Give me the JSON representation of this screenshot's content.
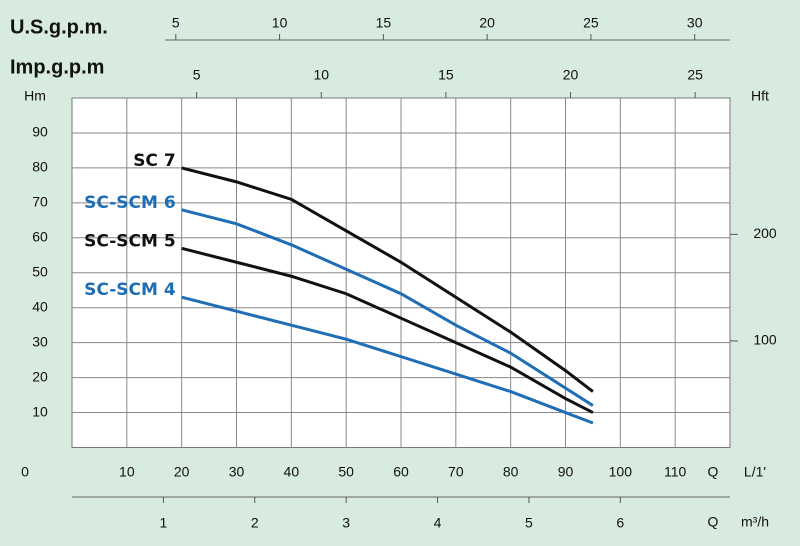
{
  "chart_data": {
    "type": "line",
    "x": [
      20,
      30,
      40,
      50,
      60,
      70,
      80,
      90,
      95
    ],
    "xlim": [
      0,
      120
    ],
    "xticks": [
      0,
      10,
      20,
      30,
      40,
      50,
      60,
      70,
      80,
      90,
      100,
      110
    ],
    "xlabel": {
      "symbol": "Q",
      "unit": "L/1'"
    },
    "ylabel": "Hm",
    "ylim": [
      0,
      100
    ],
    "yticks": [
      10,
      20,
      30,
      40,
      50,
      60,
      70,
      80,
      90
    ],
    "grid": true,
    "y2label": "Hft",
    "y2lim": [
      0,
      328
    ],
    "y2ticks": [
      100,
      200
    ],
    "secondary_x_axes": [
      {
        "label": "U.S.g.p.m.",
        "lim": [
          0,
          31.7
        ],
        "ticks": [
          5,
          10,
          15,
          20,
          25,
          30
        ]
      },
      {
        "label": "Imp.g.p.m",
        "lim": [
          0,
          26.4
        ],
        "ticks": [
          5,
          10,
          15,
          20,
          25
        ]
      },
      {
        "symbol": "Q",
        "label": "m³/h",
        "lim": [
          0,
          7.2
        ],
        "ticks": [
          1,
          2,
          3,
          4,
          5,
          6
        ]
      }
    ],
    "series": [
      {
        "name": "SC 7",
        "color": "#111111",
        "values": [
          80,
          76,
          71,
          62,
          53,
          43,
          33,
          22,
          16
        ]
      },
      {
        "name": "SC-SCM 6",
        "color": "#1f6db5",
        "values": [
          68,
          64,
          58,
          51,
          44,
          35,
          27,
          17,
          12
        ]
      },
      {
        "name": "SC-SCM 5",
        "color": "#111111",
        "values": [
          57,
          53,
          49,
          44,
          37,
          30,
          23,
          14,
          10
        ]
      },
      {
        "name": "SC-SCM 4",
        "color": "#1f6db5",
        "values": [
          43,
          39,
          35,
          31,
          26,
          21,
          16,
          10,
          7
        ]
      }
    ]
  }
}
